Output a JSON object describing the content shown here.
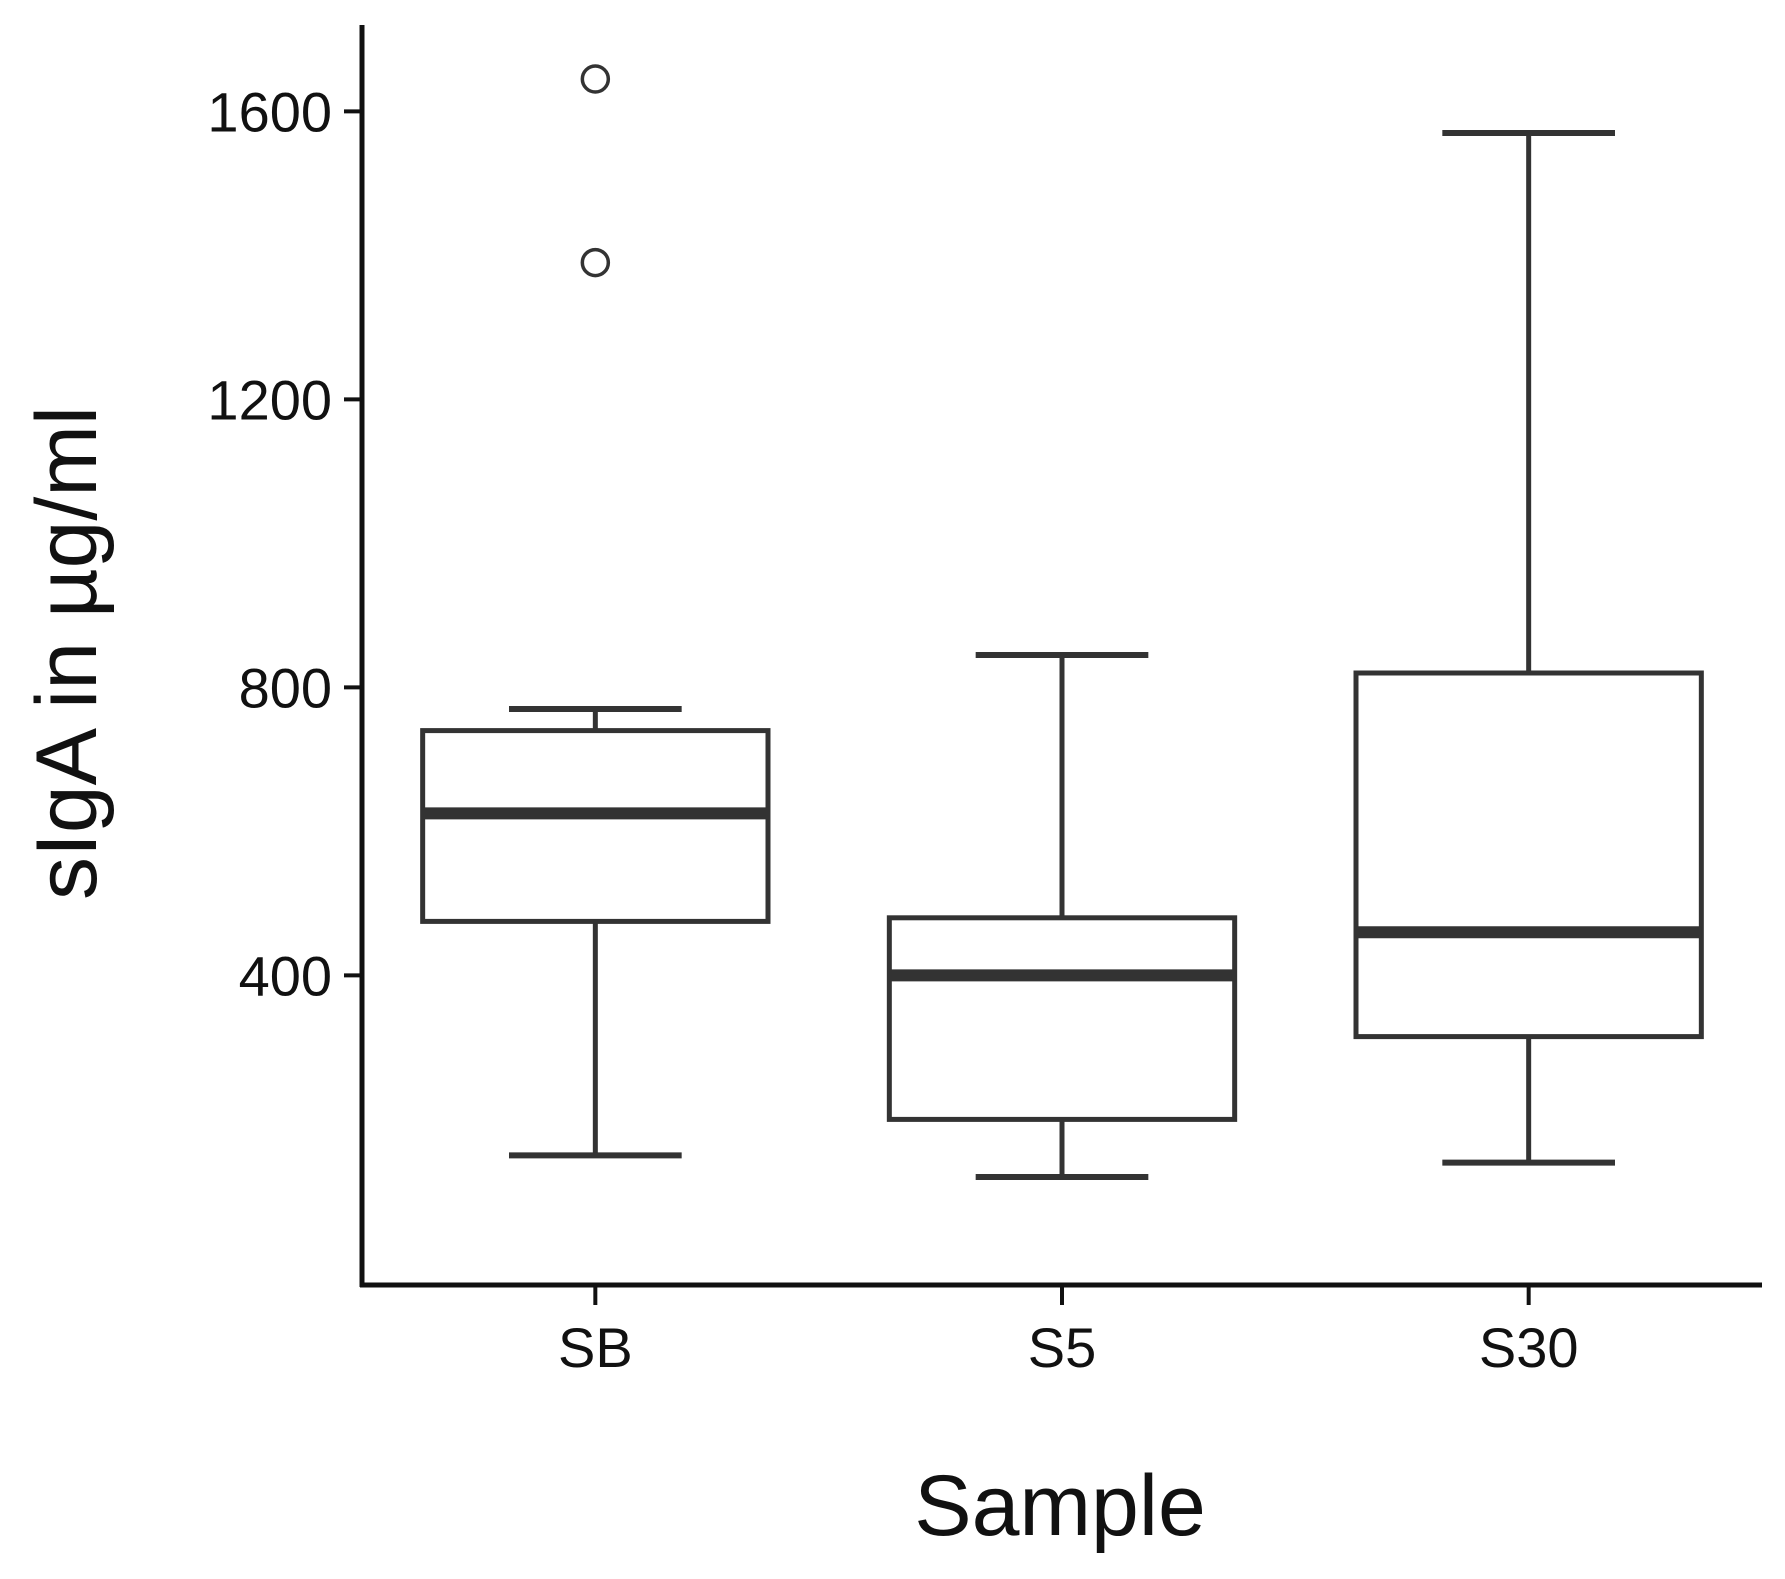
{
  "chart_data": {
    "type": "boxplot",
    "xlabel": "Sample",
    "ylabel": "sIgA in µg/ml",
    "categories": [
      "SB",
      "S5",
      "S30"
    ],
    "yticks": [
      400,
      800,
      1200,
      1600
    ],
    "ylim": [
      -30,
      1720
    ],
    "grid": false,
    "boxes": [
      {
        "category": "SB",
        "whisker_low": 150,
        "q1": 475,
        "median": 625,
        "q3": 740,
        "whisker_high": 770,
        "outliers": [
          1390,
          1645
        ]
      },
      {
        "category": "S5",
        "whisker_low": 120,
        "q1": 200,
        "median": 400,
        "q3": 480,
        "whisker_high": 845,
        "outliers": []
      },
      {
        "category": "S30",
        "whisker_low": 140,
        "q1": 315,
        "median": 460,
        "q3": 820,
        "whisker_high": 1570,
        "outliers": []
      }
    ],
    "colors": {
      "line": "#333333",
      "axis": "#111111",
      "background": "#ffffff"
    }
  }
}
